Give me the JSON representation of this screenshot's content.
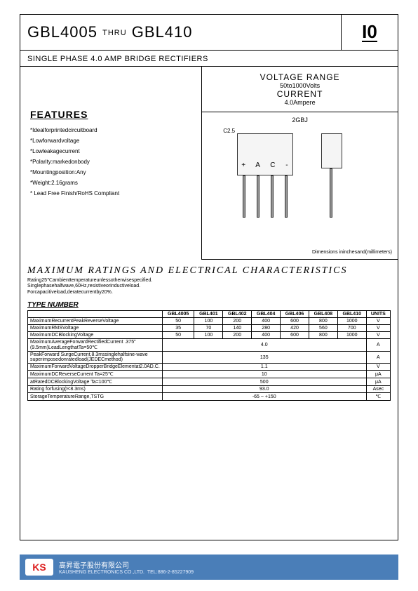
{
  "header": {
    "part_from": "GBL4005",
    "thru": "THRU",
    "part_to": "GBL410",
    "logo": "I0"
  },
  "subtitle": "SINGLE PHASE 4.0 AMP BRIDGE RECTIFIERS",
  "voltage_box": {
    "vr_label": "VOLTAGE RANGE",
    "vr_value": "50to1000Volts",
    "cur_label": "CURRENT",
    "cur_value": "4.0Ampere"
  },
  "diagram": {
    "title": "2GBJ",
    "c_label": "C2.5",
    "pins": "+ A C -",
    "note": "Dimensions ininchesand(millimeters)"
  },
  "features": {
    "title": "FEATURES",
    "items": [
      "*Idealforprintedcircuitboard",
      "*Lowforwardvoltage",
      "*Lowleakagecurrent",
      "*Polarity:markedonbody",
      "*Mountingposition:Any",
      "*Weight:2.16grams",
      "* Lead Free Finish/RoHS Compliant"
    ]
  },
  "max_ratings": {
    "title": "MAXIMUM RATINGS AND ELECTRICAL CHARACTERISTICS",
    "sub1": "Rating25℃ambienttemperatureunlessotherwisespecified.",
    "sub2": "Singlephasehalfwave,60Hz,resistiveorinductiveload.",
    "sub3": "Forcapacitiveload,deratecurrentby20%.",
    "type_heading": "TYPE NUMBER",
    "columns": [
      "GBL4005",
      "GBL401",
      "GBL402",
      "GBL404",
      "GBL406",
      "GBL408",
      "GBL410",
      "UNITS"
    ],
    "rows": [
      {
        "label": "MaximumRecurrentPeakReverseVoltage",
        "cells": [
          "50",
          "100",
          "200",
          "400",
          "600",
          "800",
          "1000",
          "V"
        ]
      },
      {
        "label": "MaximumRMSVoltage",
        "cells": [
          "35",
          "70",
          "140",
          "280",
          "420",
          "560",
          "700",
          "V"
        ]
      },
      {
        "label": "MaximumDCBlockingVoltage",
        "cells": [
          "50",
          "100",
          "200",
          "400",
          "600",
          "800",
          "1000",
          "V"
        ]
      },
      {
        "label": "MaximumAverageForwardRectifiedCurrent\n.375\"(9.5mm)LeadLengthatTa=50℃",
        "span": "4.0",
        "unit": "A"
      },
      {
        "label": "PeakForward SurgeCurrent,8.3mssinglehalfsine-wave\nsuperimposedonratedload(JEDECmethod)",
        "span": "135",
        "unit": "A"
      },
      {
        "label": "MaximumForwardVoltageDropperBridgeElementat2.0AD.C.",
        "span": "1.1",
        "unit": "V"
      },
      {
        "label": "MaximumDCReverseCurrent          Ta=25℃",
        "span": "10",
        "unit": "μA"
      },
      {
        "label": "atRatedDCBlockingVoltage          Ta=100℃",
        "span": "500",
        "unit": "μA"
      },
      {
        "label": "Rating forfusing(t<8.3ms)",
        "span": "93.0",
        "unit": "Asec"
      },
      {
        "label": "StorageTemperatureRange,TSTG",
        "span": "-65 ~ +150",
        "unit": "℃"
      }
    ]
  },
  "footer": {
    "logo": "KS",
    "cn": "高昇電子股份有限公司",
    "en": "KAUSHENG ELECTRONICS CO.,LTD.",
    "tel": "TEL:886-2-85227909"
  }
}
